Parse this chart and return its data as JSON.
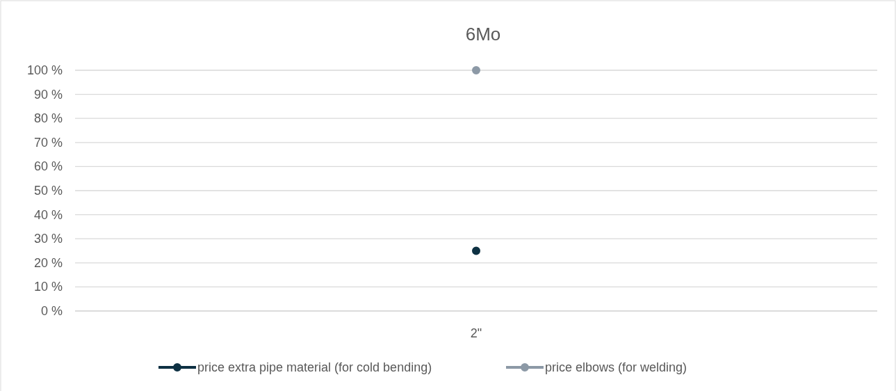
{
  "chart_data": {
    "type": "line",
    "title": "6Mo",
    "categories": [
      "2\""
    ],
    "series": [
      {
        "name": "price extra pipe material (for cold bending)",
        "color": "#0e3143",
        "values": [
          25
        ]
      },
      {
        "name": "price elbows (for welding)",
        "color": "#8c99a6",
        "values": [
          100
        ]
      }
    ],
    "ylim": [
      0,
      100
    ],
    "yticks": [
      {
        "value": 0,
        "label": "0 %"
      },
      {
        "value": 10,
        "label": "10 %"
      },
      {
        "value": 20,
        "label": "20 %"
      },
      {
        "value": 30,
        "label": "30 %"
      },
      {
        "value": 40,
        "label": "40 %"
      },
      {
        "value": 50,
        "label": "50 %"
      },
      {
        "value": 60,
        "label": "60 %"
      },
      {
        "value": 70,
        "label": "70 %"
      },
      {
        "value": 80,
        "label": "80 %"
      },
      {
        "value": 90,
        "label": "90 %"
      },
      {
        "value": 100,
        "label": "100 %"
      }
    ],
    "grid": "y",
    "legend": "bottom",
    "marker": "circle"
  }
}
